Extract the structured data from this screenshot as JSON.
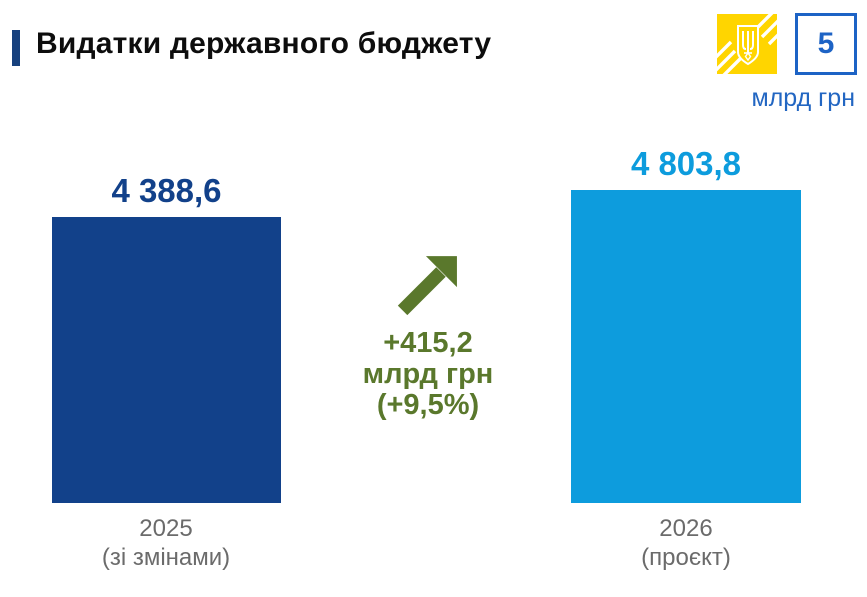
{
  "header": {
    "title": "Видатки державного бюджету",
    "slide_number": "5",
    "unit_label": "млрд грн",
    "emblem_icon": "ukraine-trident-emblem"
  },
  "chart_data": {
    "type": "bar",
    "title": "Видатки державного бюджету",
    "ylabel": "млрд грн",
    "categories": [
      "2025 (зі змінами)",
      "2026 (проєкт)"
    ],
    "values": [
      4388.6,
      4803.8
    ],
    "value_labels": [
      "4 388,6",
      "4 803,8"
    ],
    "bar_colors": [
      "#12418a",
      "#0d9cdd"
    ],
    "ylim": [
      0,
      4803.8
    ],
    "grid": false,
    "legend": false,
    "x_tick_labels": [
      {
        "line1": "2025",
        "line2": "(зі змінами)"
      },
      {
        "line1": "2026",
        "line2": "(проєкт)"
      }
    ],
    "annotation": {
      "icon": "arrow-up-right",
      "line1": "+415,2",
      "line2": "млрд грн",
      "line3": "(+9,5%)",
      "delta_value": 415.2,
      "delta_percent": 9.5,
      "color": "#5a782c"
    }
  },
  "colors": {
    "background": "#ffffff",
    "accent_bar": "#17417e",
    "title_text": "#0d0d0d",
    "bar_2025": "#12418a",
    "bar_2026": "#0d9cdd",
    "annotation_green": "#5a782c",
    "axis_label_gray": "#6b6b6b",
    "header_blue": "#2266c2",
    "number_box_blue": "#1d63c5",
    "flag_yellow": "#ffd500"
  }
}
